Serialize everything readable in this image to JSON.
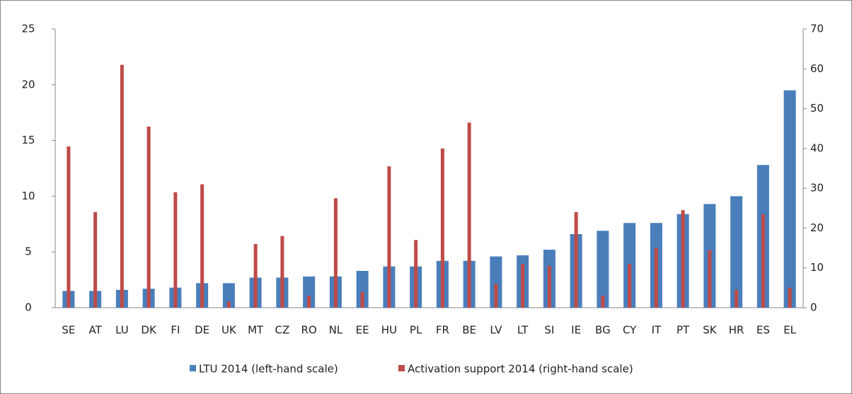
{
  "chart_data": {
    "type": "bar",
    "categories": [
      "SE",
      "AT",
      "LU",
      "DK",
      "FI",
      "DE",
      "UK",
      "MT",
      "CZ",
      "RO",
      "NL",
      "EE",
      "HU",
      "PL",
      "FR",
      "BE",
      "LV",
      "LT",
      "SI",
      "IE",
      "BG",
      "CY",
      "IT",
      "PT",
      "SK",
      "HR",
      "ES",
      "EL"
    ],
    "series": [
      {
        "name": "LTU 2014 (left-hand scale)",
        "color": "#4a7ebb",
        "values": [
          1.5,
          1.5,
          1.6,
          1.7,
          1.8,
          2.2,
          2.2,
          2.7,
          2.7,
          2.8,
          2.8,
          3.3,
          3.7,
          3.7,
          4.2,
          4.2,
          4.6,
          4.7,
          5.2,
          6.6,
          6.9,
          7.6,
          7.6,
          8.4,
          9.3,
          10.0,
          12.8,
          19.5
        ]
      },
      {
        "name": "Activation support 2014 (right-hand scale)",
        "color": "#be4b48",
        "axis": "y2",
        "values": [
          40.5,
          24,
          61,
          45.5,
          29,
          31,
          1.5,
          16,
          18,
          3,
          27.5,
          4,
          35.5,
          17,
          40,
          46.5,
          6,
          11,
          10.5,
          24,
          3,
          11,
          15,
          24.5,
          14.5,
          4.5,
          23.5,
          5
        ]
      }
    ],
    "ylim": [
      0,
      25
    ],
    "yticks": [
      0,
      5,
      10,
      15,
      20,
      25
    ],
    "y2lim": [
      0,
      70
    ],
    "y2ticks": [
      0,
      10,
      20,
      30,
      40,
      50,
      60,
      70
    ],
    "legend": "bottom"
  }
}
